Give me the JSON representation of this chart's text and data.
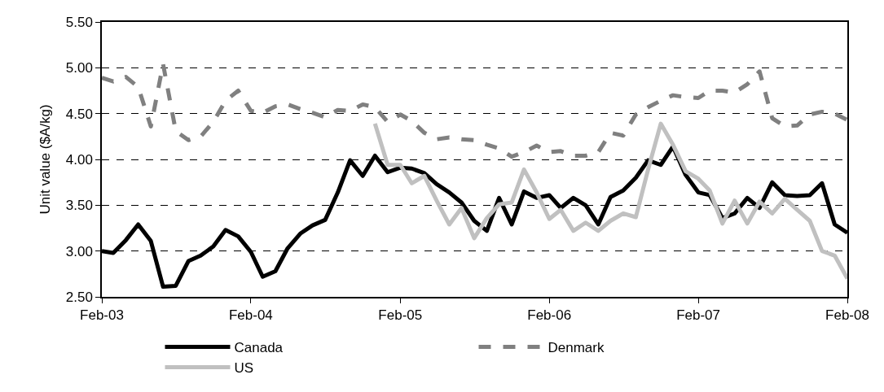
{
  "chart_data": {
    "type": "line",
    "ylabel": "Unit value ($A/kg)",
    "x": [
      "2003-02",
      "2003-03",
      "2003-04",
      "2003-05",
      "2003-06",
      "2003-07",
      "2003-08",
      "2003-09",
      "2003-10",
      "2003-11",
      "2003-12",
      "2004-01",
      "2004-02",
      "2004-03",
      "2004-04",
      "2004-05",
      "2004-06",
      "2004-07",
      "2004-08",
      "2004-09",
      "2004-10",
      "2004-11",
      "2004-12",
      "2005-01",
      "2005-02",
      "2005-03",
      "2005-04",
      "2005-05",
      "2005-06",
      "2005-07",
      "2005-08",
      "2005-09",
      "2005-10",
      "2005-11",
      "2005-12",
      "2006-01",
      "2006-02",
      "2006-03",
      "2006-04",
      "2006-05",
      "2006-06",
      "2006-07",
      "2006-08",
      "2006-09",
      "2006-10",
      "2006-11",
      "2006-12",
      "2007-01",
      "2007-02",
      "2007-03",
      "2007-04",
      "2007-05",
      "2007-06",
      "2007-07",
      "2007-08",
      "2007-09",
      "2007-10",
      "2007-11",
      "2007-12",
      "2008-01",
      "2008-02"
    ],
    "series": [
      {
        "name": "Canada",
        "color": "#000000",
        "line_style": "solid",
        "values": [
          3.0,
          2.98,
          3.12,
          3.29,
          3.11,
          2.61,
          2.62,
          2.89,
          2.95,
          3.05,
          3.23,
          3.16,
          2.99,
          2.72,
          2.78,
          3.03,
          3.19,
          3.28,
          3.34,
          3.64,
          3.99,
          3.82,
          4.04,
          3.86,
          3.91,
          3.9,
          3.85,
          3.73,
          3.64,
          3.53,
          3.33,
          3.22,
          3.58,
          3.29,
          3.65,
          3.58,
          3.61,
          3.47,
          3.58,
          3.5,
          3.29,
          3.59,
          3.66,
          3.8,
          3.99,
          3.94,
          4.14,
          3.83,
          3.64,
          3.61,
          3.36,
          3.41,
          3.58,
          3.47,
          3.75,
          3.61,
          3.6,
          3.61,
          3.74,
          3.29,
          3.2
        ]
      },
      {
        "name": "Denmark",
        "color": "#808080",
        "line_style": "dashed",
        "values": [
          4.89,
          4.85,
          4.9,
          4.79,
          4.36,
          5.04,
          4.31,
          4.21,
          4.25,
          4.41,
          4.64,
          4.75,
          4.53,
          4.51,
          4.58,
          4.6,
          4.55,
          4.51,
          4.46,
          4.54,
          4.53,
          4.6,
          4.57,
          4.41,
          4.49,
          4.42,
          4.29,
          4.22,
          4.24,
          4.22,
          4.21,
          4.16,
          4.12,
          4.03,
          4.08,
          4.15,
          4.08,
          4.09,
          4.04,
          4.04,
          4.08,
          4.29,
          4.26,
          4.49,
          4.57,
          4.64,
          4.7,
          4.68,
          4.67,
          4.75,
          4.75,
          4.73,
          4.82,
          4.96,
          4.45,
          4.36,
          4.37,
          4.49,
          4.52,
          4.5,
          4.43
        ]
      },
      {
        "name": "US",
        "color": "#c0c0c0",
        "line_style": "solid",
        "values": [
          null,
          null,
          null,
          null,
          null,
          null,
          null,
          null,
          null,
          null,
          null,
          null,
          null,
          null,
          null,
          null,
          null,
          null,
          null,
          null,
          null,
          null,
          4.39,
          3.94,
          3.94,
          3.74,
          3.82,
          3.55,
          3.29,
          3.47,
          3.14,
          3.36,
          3.51,
          3.53,
          3.89,
          3.64,
          3.35,
          3.45,
          3.22,
          3.31,
          3.22,
          3.33,
          3.41,
          3.37,
          3.89,
          4.39,
          4.16,
          3.87,
          3.79,
          3.66,
          3.3,
          3.55,
          3.3,
          3.54,
          3.41,
          3.57,
          3.45,
          3.33,
          3.0,
          2.95,
          2.7
        ]
      }
    ],
    "xlim": [
      "2003-02",
      "2008-02"
    ],
    "xticks": [
      {
        "value": "2003-02",
        "label": "Feb-03"
      },
      {
        "value": "2004-02",
        "label": "Feb-04"
      },
      {
        "value": "2005-02",
        "label": "Feb-05"
      },
      {
        "value": "2006-02",
        "label": "Feb-06"
      },
      {
        "value": "2007-02",
        "label": "Feb-07"
      },
      {
        "value": "2008-02",
        "label": "Feb-08"
      }
    ],
    "ylim": [
      2.5,
      5.5
    ],
    "yticks": [
      {
        "value": 2.5,
        "label": "2.50"
      },
      {
        "value": 3.0,
        "label": "3.00"
      },
      {
        "value": 3.5,
        "label": "3.50"
      },
      {
        "value": 4.0,
        "label": "4.00"
      },
      {
        "value": 4.5,
        "label": "4.50"
      },
      {
        "value": 5.0,
        "label": "5.00"
      },
      {
        "value": 5.5,
        "label": "5.50"
      }
    ],
    "grid": "y",
    "legend": "bottom",
    "marker": "none"
  }
}
